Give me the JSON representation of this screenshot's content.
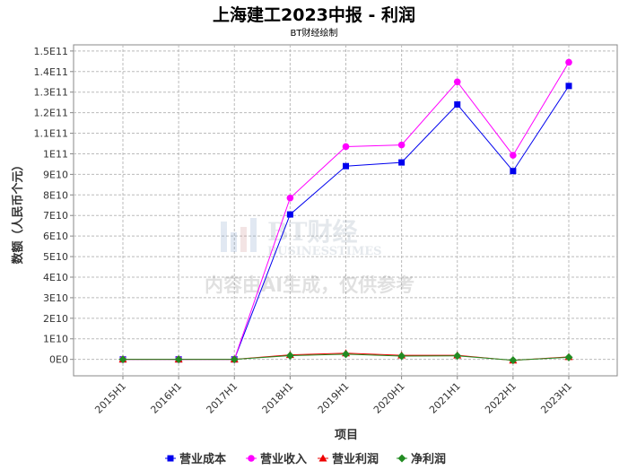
{
  "title": "上海建工2023中报 - 利润",
  "subtitle": "BT财经绘制",
  "watermark": {
    "brand": "BT财经",
    "brand_en": "BUSINESSTIMES",
    "notice": "内容由AI生成，仅供参考"
  },
  "chart_data": {
    "type": "line",
    "title": "上海建工2023中报 - 利润",
    "subtitle": "BT财经绘制",
    "xlabel": "项目",
    "ylabel": "数额（人民币个元）",
    "categories": [
      "2015H1",
      "2016H1",
      "2017H1",
      "2018H1",
      "2019H1",
      "2020H1",
      "2021H1",
      "2022H1",
      "2023H1"
    ],
    "ylim": [
      -8000000000,
      153000000000
    ],
    "yticks": [
      0,
      10000000000,
      20000000000,
      30000000000,
      40000000000,
      50000000000,
      60000000000,
      70000000000,
      80000000000,
      90000000000,
      100000000000,
      110000000000,
      120000000000,
      130000000000,
      140000000000,
      150000000000
    ],
    "ytick_labels": [
      "0E0",
      "1E10",
      "2E10",
      "3E10",
      "4E10",
      "5E10",
      "6E10",
      "7E10",
      "8E10",
      "9E10",
      "1E11",
      "1.1E11",
      "1.2E11",
      "1.3E11",
      "1.4E11",
      "1.5E11"
    ],
    "grid": true,
    "legend_position": "bottom",
    "series": [
      {
        "name": "营业成本",
        "color": "#0000ee",
        "marker": "square",
        "values": [
          0,
          0,
          0,
          70500000000,
          94000000000,
          95800000000,
          124000000000,
          91600000000,
          133000000000
        ]
      },
      {
        "name": "营业收入",
        "color": "#ff00ff",
        "marker": "circle",
        "values": [
          0,
          0,
          0,
          78500000000,
          103500000000,
          104300000000,
          135000000000,
          99300000000,
          144500000000
        ]
      },
      {
        "name": "营业利润",
        "color": "#ee0000",
        "marker": "triangle",
        "values": [
          0,
          0,
          0,
          2200000000,
          3000000000,
          2000000000,
          2000000000,
          -500000000,
          1200000000
        ]
      },
      {
        "name": "净利润",
        "color": "#228b22",
        "marker": "diamond",
        "values": [
          0,
          0,
          0,
          1800000000,
          2500000000,
          1600000000,
          1700000000,
          -400000000,
          1000000000
        ]
      }
    ]
  }
}
